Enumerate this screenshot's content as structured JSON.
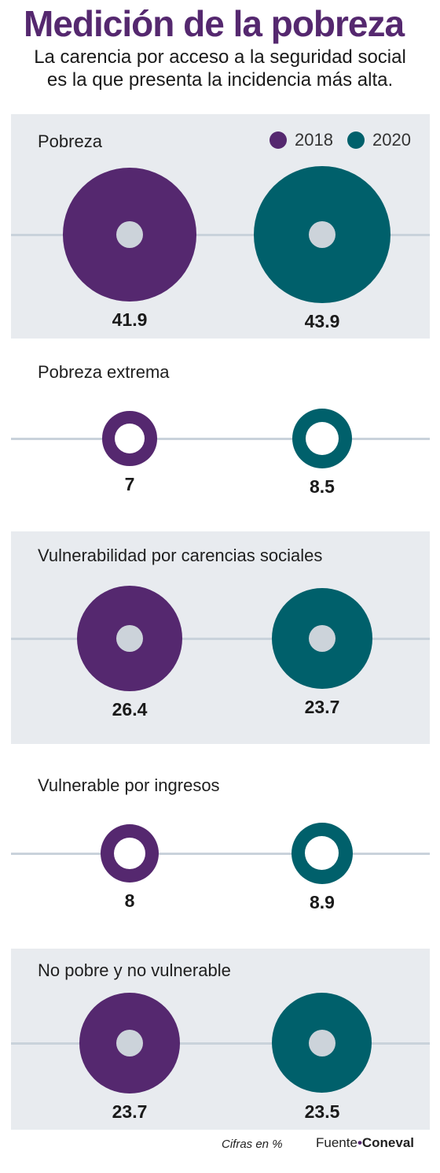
{
  "header": {
    "title": "Medición de la pobreza",
    "subtitle_line1": "La carencia por acceso a la seguridad social",
    "subtitle_line2": "es la que presenta la incidencia más alta."
  },
  "legend": [
    {
      "label": "2018",
      "color": "#55286f"
    },
    {
      "label": "2020",
      "color": "#00606b"
    }
  ],
  "colors": {
    "series_2018": "#55286f",
    "series_2020": "#00606b",
    "panel_bg": "#e8ebef",
    "hole": "#ccd3da"
  },
  "chart_data": {
    "type": "bubble",
    "series": [
      {
        "name": "2018",
        "values": [
          41.9,
          7,
          26.4,
          8,
          23.7
        ]
      },
      {
        "name": "2020",
        "values": [
          43.9,
          8.5,
          23.7,
          8.9,
          23.5
        ]
      }
    ],
    "categories": [
      "Pobreza",
      "Pobreza extrema",
      "Vulnerabilidad por carencias sociales",
      "Vulnerable por ingresos",
      "No pobre y no vulnerable"
    ],
    "value_labels": [
      [
        "41.9",
        "43.9"
      ],
      [
        "7",
        "8.5"
      ],
      [
        "26.4",
        "23.7"
      ],
      [
        "8",
        "8.9"
      ],
      [
        "23.7",
        "23.5"
      ]
    ],
    "unit_note": "Cifras en %"
  },
  "footer": {
    "note": "Cifras en %",
    "source_label": "Fuente",
    "source_sep": "•",
    "source_org": "Coneval"
  }
}
